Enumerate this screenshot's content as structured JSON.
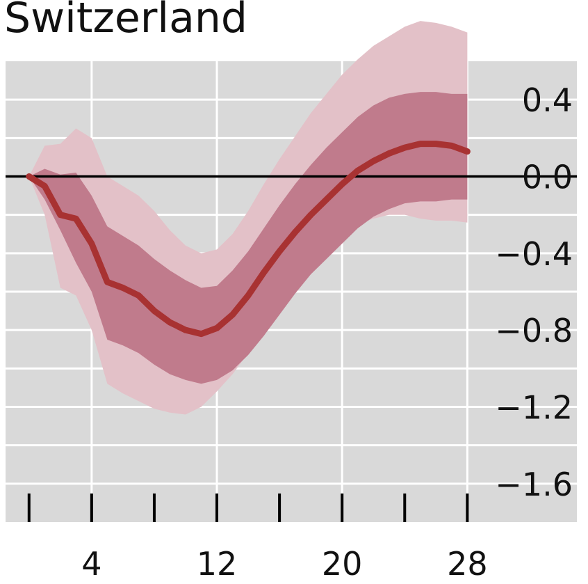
{
  "chart_data": {
    "type": "line",
    "title": "Switzerland",
    "xlabel": "",
    "ylabel": "",
    "xlim": [
      -1.5,
      35
    ],
    "ylim": [
      -1.8,
      0.6
    ],
    "x_ticks": [
      4,
      12,
      20,
      28
    ],
    "x_minor_ticks": [
      0,
      4,
      8,
      12,
      16,
      20,
      24,
      28
    ],
    "y_ticks": [
      0.4,
      0.0,
      -0.4,
      -0.8,
      -1.2,
      -1.6
    ],
    "y_tick_labels": [
      "0.4",
      "0.0",
      "−0.4",
      "−0.8",
      "−1.2",
      "−1.6"
    ],
    "grid": true,
    "legend": "none",
    "zero_line": 0.0,
    "colors": {
      "background": "#d9d9d9",
      "grid": "#ffffff",
      "line": "#a83232",
      "inner_band": "#c07b8c",
      "outer_band": "#e3c1c8",
      "zero_line": "#000000"
    },
    "series": [
      {
        "x": [
          0,
          1,
          2,
          3,
          4,
          5,
          6,
          7,
          8,
          9,
          10,
          11,
          12,
          13,
          14,
          15,
          16,
          17,
          18,
          19,
          20,
          21,
          22,
          23,
          24,
          25,
          26,
          27,
          28
        ],
        "values": [
          0.0,
          -0.05,
          -0.2,
          -0.22,
          -0.35,
          -0.55,
          -0.58,
          -0.62,
          -0.7,
          -0.76,
          -0.8,
          -0.82,
          -0.79,
          -0.72,
          -0.62,
          -0.5,
          -0.39,
          -0.29,
          -0.2,
          -0.12,
          -0.04,
          0.03,
          0.08,
          0.12,
          0.15,
          0.17,
          0.17,
          0.16,
          0.13
        ],
        "inner_lower": [
          0.0,
          -0.12,
          -0.28,
          -0.45,
          -0.6,
          -0.85,
          -0.88,
          -0.92,
          -0.98,
          -1.03,
          -1.06,
          -1.08,
          -1.06,
          -1.01,
          -0.93,
          -0.83,
          -0.72,
          -0.61,
          -0.51,
          -0.43,
          -0.35,
          -0.27,
          -0.21,
          -0.17,
          -0.14,
          -0.13,
          -0.13,
          -0.12,
          -0.12
        ],
        "inner_upper": [
          0.0,
          0.04,
          0.01,
          0.02,
          -0.1,
          -0.26,
          -0.31,
          -0.36,
          -0.43,
          -0.49,
          -0.54,
          -0.58,
          -0.57,
          -0.49,
          -0.39,
          -0.27,
          -0.15,
          -0.04,
          0.06,
          0.15,
          0.23,
          0.31,
          0.37,
          0.41,
          0.43,
          0.44,
          0.44,
          0.43,
          0.43
        ]
      }
    ],
    "outer_lower": [
      0.0,
      -0.2,
      -0.58,
      -0.62,
      -0.8,
      -1.08,
      -1.13,
      -1.17,
      -1.21,
      -1.23,
      -1.24,
      -1.2,
      -1.12,
      -1.03,
      -0.92,
      -0.8,
      -0.68,
      -0.57,
      -0.46,
      -0.38,
      -0.31,
      -0.25,
      -0.22,
      -0.2,
      -0.2,
      -0.22,
      -0.23,
      -0.23,
      -0.24
    ],
    "outer_upper": [
      0.0,
      0.16,
      0.17,
      0.25,
      0.2,
      0.0,
      -0.05,
      -0.1,
      -0.18,
      -0.28,
      -0.36,
      -0.4,
      -0.38,
      -0.3,
      -0.18,
      -0.04,
      0.09,
      0.21,
      0.33,
      0.43,
      0.53,
      0.61,
      0.68,
      0.73,
      0.78,
      0.81,
      0.8,
      0.78,
      0.75
    ]
  }
}
